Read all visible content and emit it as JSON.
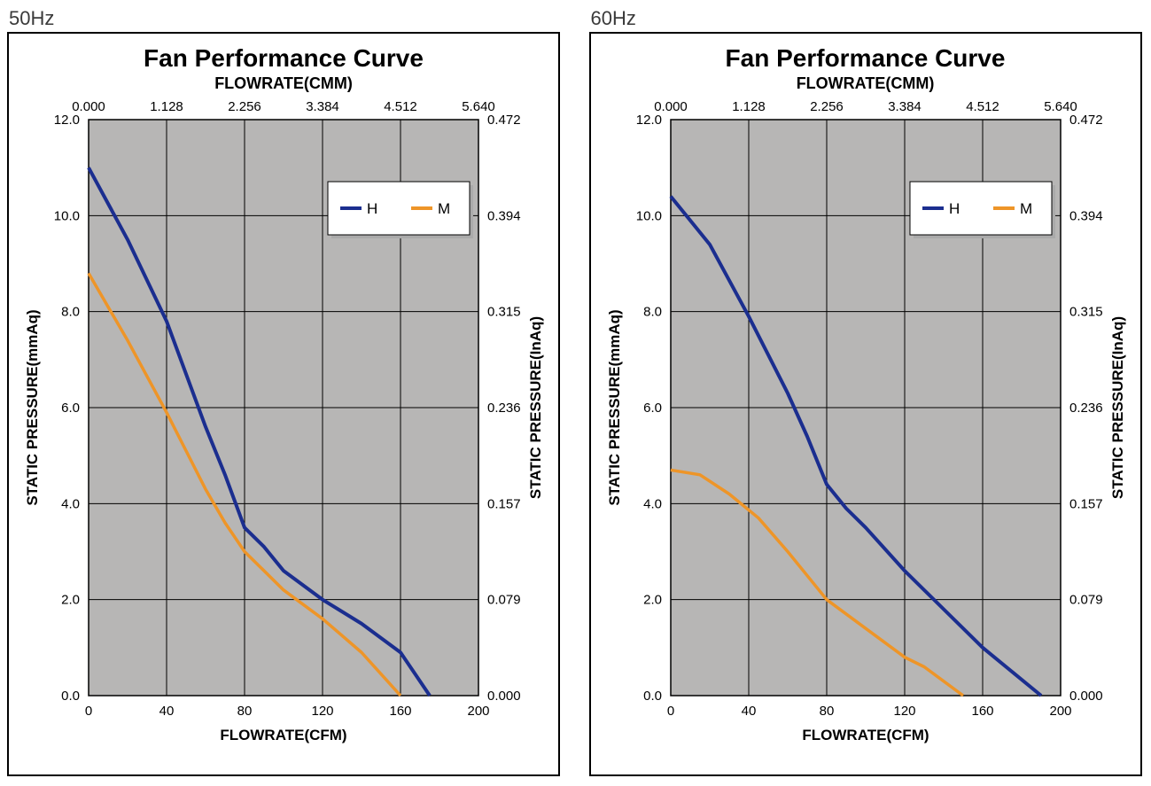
{
  "chart_50": {
    "freq_label": "50Hz",
    "title": "Fan Performance Curve",
    "top_axis_label": "FLOWRATE(CMM)",
    "bottom_axis_label": "FLOWRATE(CFM)",
    "left_axis_label": "STATIC PRESSURE(mmAq)",
    "right_axis_label": "STATIC PRESSURE(InAq)",
    "type": "line",
    "plot_bg": "#b7b6b5",
    "grid_color": "#000000",
    "x_range": [
      0,
      200
    ],
    "y_range": [
      0,
      12
    ],
    "x_ticks": [
      0,
      40,
      80,
      120,
      160,
      200
    ],
    "y_ticks": [
      0.0,
      2.0,
      4.0,
      6.0,
      8.0,
      10.0,
      12.0
    ],
    "top_ticks": [
      "0.000",
      "1.128",
      "2.256",
      "3.384",
      "4.512",
      "5.640"
    ],
    "right_ticks": [
      "0.000",
      "0.079",
      "0.157",
      "0.236",
      "0.315",
      "0.394",
      "0.472"
    ],
    "legend": {
      "items": [
        {
          "label": "H",
          "color": "#1b2e8f"
        },
        {
          "label": "M",
          "color": "#ee9528"
        }
      ]
    },
    "series": [
      {
        "name": "H",
        "color": "#1b2e8f",
        "line_width": 4,
        "points": [
          [
            0,
            11.0
          ],
          [
            20,
            9.5
          ],
          [
            40,
            7.8
          ],
          [
            50,
            6.7
          ],
          [
            60,
            5.6
          ],
          [
            70,
            4.6
          ],
          [
            80,
            3.5
          ],
          [
            90,
            3.1
          ],
          [
            100,
            2.6
          ],
          [
            110,
            2.3
          ],
          [
            120,
            2.0
          ],
          [
            140,
            1.5
          ],
          [
            160,
            0.9
          ],
          [
            175,
            0.0
          ]
        ]
      },
      {
        "name": "M",
        "color": "#ee9528",
        "line_width": 3.5,
        "points": [
          [
            0,
            8.8
          ],
          [
            20,
            7.4
          ],
          [
            40,
            5.9
          ],
          [
            50,
            5.1
          ],
          [
            60,
            4.3
          ],
          [
            70,
            3.6
          ],
          [
            80,
            3.0
          ],
          [
            90,
            2.6
          ],
          [
            100,
            2.2
          ],
          [
            110,
            1.9
          ],
          [
            120,
            1.6
          ],
          [
            140,
            0.9
          ],
          [
            160,
            0.0
          ]
        ]
      }
    ]
  },
  "chart_60": {
    "freq_label": "60Hz",
    "title": "Fan Performance Curve",
    "top_axis_label": "FLOWRATE(CMM)",
    "bottom_axis_label": "FLOWRATE(CFM)",
    "left_axis_label": "STATIC PRESSURE(mmAq)",
    "right_axis_label": "STATIC PRESSURE(InAq)",
    "type": "line",
    "plot_bg": "#b7b6b5",
    "grid_color": "#000000",
    "x_range": [
      0,
      200
    ],
    "y_range": [
      0,
      12
    ],
    "x_ticks": [
      0,
      40,
      80,
      120,
      160,
      200
    ],
    "y_ticks": [
      0.0,
      2.0,
      4.0,
      6.0,
      8.0,
      10.0,
      12.0
    ],
    "top_ticks": [
      "0.000",
      "1.128",
      "2.256",
      "3.384",
      "4.512",
      "5.640"
    ],
    "right_ticks": [
      "0.000",
      "0.079",
      "0.157",
      "0.236",
      "0.315",
      "0.394",
      "0.472"
    ],
    "legend": {
      "items": [
        {
          "label": "H",
          "color": "#1b2e8f"
        },
        {
          "label": "M",
          "color": "#ee9528"
        }
      ]
    },
    "series": [
      {
        "name": "H",
        "color": "#1b2e8f",
        "line_width": 4,
        "points": [
          [
            0,
            10.4
          ],
          [
            20,
            9.4
          ],
          [
            40,
            7.9
          ],
          [
            60,
            6.3
          ],
          [
            70,
            5.4
          ],
          [
            80,
            4.4
          ],
          [
            90,
            3.9
          ],
          [
            100,
            3.5
          ],
          [
            120,
            2.6
          ],
          [
            140,
            1.8
          ],
          [
            160,
            1.0
          ],
          [
            190,
            0.0
          ]
        ]
      },
      {
        "name": "M",
        "color": "#ee9528",
        "line_width": 3.5,
        "points": [
          [
            0,
            4.7
          ],
          [
            15,
            4.6
          ],
          [
            30,
            4.2
          ],
          [
            45,
            3.7
          ],
          [
            60,
            3.0
          ],
          [
            70,
            2.5
          ],
          [
            80,
            2.0
          ],
          [
            100,
            1.4
          ],
          [
            120,
            0.8
          ],
          [
            130,
            0.6
          ],
          [
            150,
            0.0
          ]
        ]
      }
    ]
  }
}
